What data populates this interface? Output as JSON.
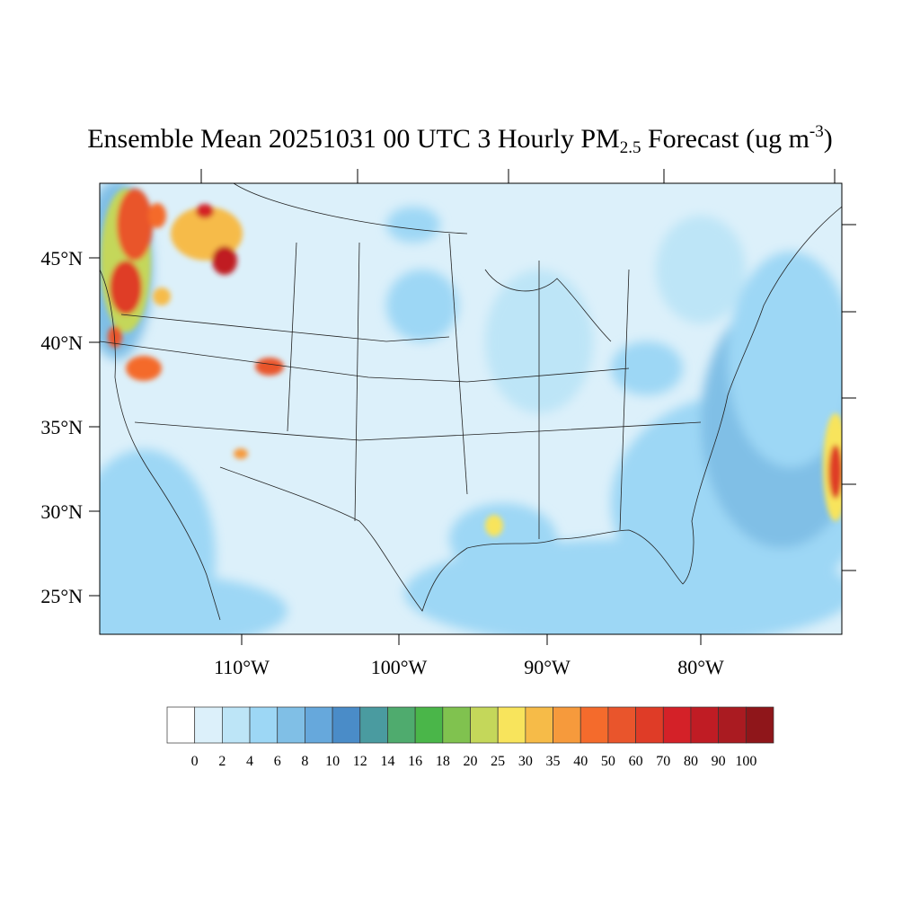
{
  "title": {
    "prefix": "Ensemble Mean 20251031 00 UTC 3 Hourly PM",
    "subscript": "2.5",
    "middle": " Forecast (ug m",
    "superscript": "-3",
    "suffix": ")"
  },
  "map": {
    "projection": "Lambert conformal, CONUS",
    "lat_labels": [
      "45°N",
      "40°N",
      "35°N",
      "30°N",
      "25°N"
    ],
    "lon_labels": [
      "110°W",
      "100°W",
      "90°W",
      "80°W"
    ],
    "background_color": "#dcf0fa",
    "ocean_color": "#9dd7f5"
  },
  "colorbar": {
    "colors": [
      "#ffffff",
      "#dcf0fa",
      "#bde5f7",
      "#9dd7f5",
      "#80bfe6",
      "#66a8dc",
      "#4a8cc8",
      "#4a9ba0",
      "#4fab6e",
      "#4ab649",
      "#80c24f",
      "#c4d75a",
      "#f8e45c",
      "#f6bb48",
      "#f69a3c",
      "#f46b2c",
      "#e9552c",
      "#df3c27",
      "#d42128",
      "#c01c24",
      "#aa1b21",
      "#8f161a"
    ],
    "labels": [
      "0",
      "2",
      "4",
      "6",
      "8",
      "10",
      "12",
      "14",
      "16",
      "18",
      "20",
      "25",
      "30",
      "35",
      "40",
      "50",
      "60",
      "70",
      "80",
      "90",
      "100"
    ]
  }
}
